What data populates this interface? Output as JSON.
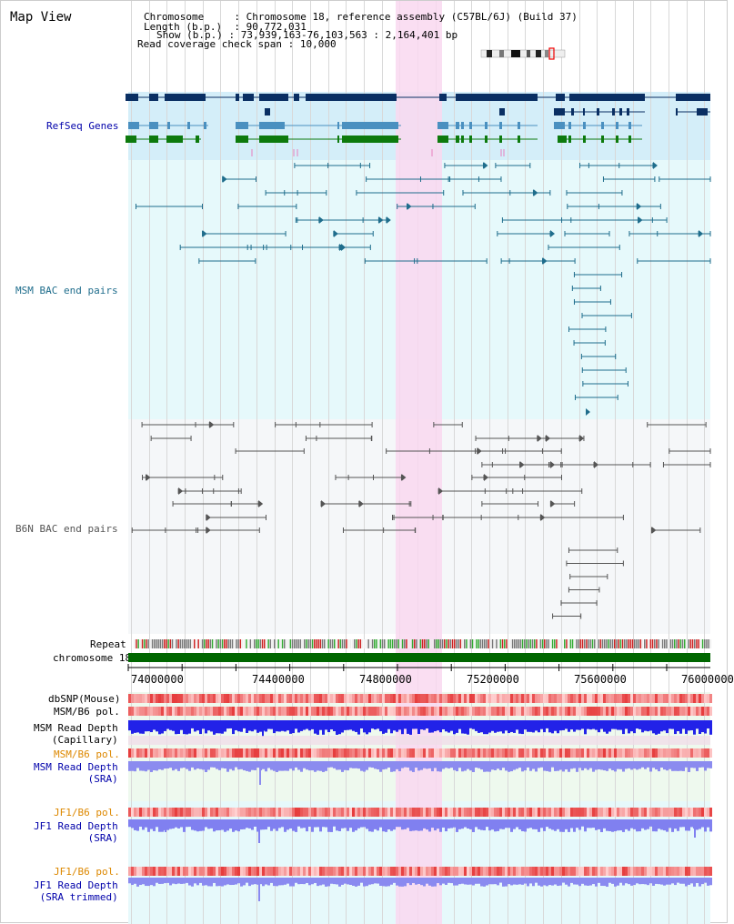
{
  "header": {
    "title": "Map View",
    "chromosome_label": "Chromosome",
    "chromosome_value": "Chromosome 18, reference assembly (C57BL/6J) (Build 37)",
    "length_label": "Length (b.p.)",
    "length_value": "90,772,031",
    "show_label": "Show (b.p.)",
    "show_value": "73,939,163-76,103,563 : 2,164,401 bp",
    "coverage_label": "Read coverage check span",
    "coverage_value": "10,000"
  },
  "tracks": {
    "refseq": "RefSeq Genes",
    "msm_bac": "MSM BAC end pairs",
    "b6n_bac": "B6N BAC end pairs",
    "repeat": "Repeat",
    "chromosome": "chromosome 18",
    "dbsnp": "dbSNP(Mouse)",
    "msm_b6_pol_1": "MSM/B6 pol.",
    "msm_read_depth_cap_1": "MSM Read Depth",
    "msm_read_depth_cap_2": "(Capillary)",
    "msm_b6_pol_2": "MSM/B6 pol.",
    "msm_read_depth_sra_1": "MSM Read Depth",
    "msm_read_depth_sra_2": "(SRA)",
    "jf1_b6_pol_1": "JF1/B6 pol.",
    "jf1_read_depth_sra_1": "JF1 Read Depth",
    "jf1_read_depth_sra_2": "(SRA)",
    "jf1_b6_pol_2": "JF1/B6 pol.",
    "jf1_read_depth_trim_1": "JF1 Read Depth",
    "jf1_read_depth_trim_2": "(SRA trimmed)"
  },
  "axis": {
    "ticks": [
      "74000000",
      "74400000",
      "74800000",
      "75200000",
      "75600000",
      "76000000"
    ]
  },
  "colors": {
    "gene_dark": "#0a2f63",
    "gene_light": "#4a90c0",
    "gene_green": "#0d7a0d",
    "msm_bac": "#1f6d8c",
    "b6n_bac": "#555555",
    "highlight": "#f9d8f0",
    "chromosome": "#006600",
    "label_blue": "#0000aa",
    "label_orange": "#dd8800",
    "label_teal": "#1f6d8c"
  }
}
